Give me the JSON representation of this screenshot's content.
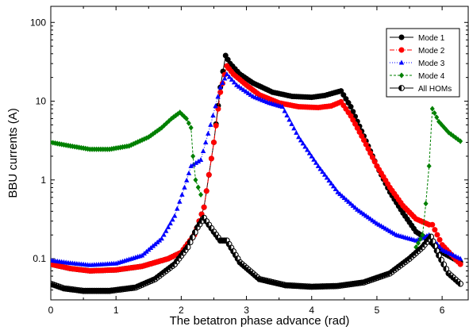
{
  "chart_data": {
    "type": "scatter",
    "title": "",
    "xlabel": "The betatron phase advance (rad)",
    "ylabel": "BBU currents (A)",
    "xlim": [
      0,
      6.4
    ],
    "ylim": [
      0.03,
      160
    ],
    "yscale": "log",
    "x_ticks": [
      0,
      1,
      2,
      3,
      4,
      5,
      6
    ],
    "x_tick_labels": [
      "0",
      "1",
      "2",
      "3",
      "4",
      "5",
      "6"
    ],
    "y_ticks": [
      0.1,
      1,
      10,
      100
    ],
    "y_tick_labels": [
      "0.1",
      "1",
      "10",
      "100"
    ],
    "grid": false,
    "legend_position": "top-right",
    "series": [
      {
        "name": "Mode 1",
        "color": "#000000",
        "marker": "circle",
        "line": "solid",
        "x": [
          0,
          0.3,
          0.6,
          1.0,
          1.4,
          1.8,
          2.0,
          2.2,
          2.35,
          2.5,
          2.6,
          2.68,
          2.75,
          2.9,
          3.1,
          3.4,
          3.7,
          4.0,
          4.2,
          4.35,
          4.45,
          4.6,
          4.8,
          5.0,
          5.2,
          5.4,
          5.6,
          5.8,
          5.83,
          6.0,
          6.28
        ],
        "y": [
          0.085,
          0.075,
          0.07,
          0.072,
          0.08,
          0.1,
          0.12,
          0.2,
          0.45,
          3.0,
          15,
          38,
          30,
          22,
          17,
          13,
          11.5,
          11.2,
          11.8,
          12.8,
          13.5,
          8.5,
          3.6,
          1.5,
          0.7,
          0.38,
          0.22,
          0.17,
          0.16,
          0.12,
          0.09
        ]
      },
      {
        "name": "Mode 2",
        "color": "#ff0000",
        "marker": "circle",
        "line": "dashdot",
        "x": [
          0,
          0.3,
          0.6,
          1.0,
          1.4,
          1.8,
          2.0,
          2.2,
          2.35,
          2.5,
          2.6,
          2.7,
          2.8,
          3.0,
          3.2,
          3.5,
          3.8,
          4.1,
          4.3,
          4.45,
          4.6,
          4.8,
          5.0,
          5.2,
          5.4,
          5.6,
          5.8,
          5.85,
          6.0,
          6.28
        ],
        "y": [
          0.085,
          0.075,
          0.07,
          0.072,
          0.08,
          0.1,
          0.12,
          0.2,
          0.45,
          3.0,
          13,
          28,
          22,
          16,
          12,
          9.5,
          8.5,
          8.3,
          8.7,
          9.8,
          6.5,
          3.2,
          1.5,
          0.8,
          0.47,
          0.32,
          0.27,
          0.27,
          0.15,
          0.085
        ]
      },
      {
        "name": "Mode 3",
        "color": "#0000ff",
        "marker": "triangle",
        "line": "dotted",
        "x": [
          0,
          0.3,
          0.6,
          1.0,
          1.4,
          1.7,
          1.9,
          2.05,
          2.15,
          2.3,
          2.45,
          2.6,
          2.7,
          2.85,
          3.1,
          3.35,
          3.55,
          3.8,
          4.1,
          4.4,
          4.7,
          5.0,
          5.3,
          5.6,
          5.8,
          5.85,
          6.0,
          6.28
        ],
        "y": [
          0.095,
          0.088,
          0.083,
          0.087,
          0.11,
          0.18,
          0.35,
          0.8,
          1.5,
          1.8,
          5,
          15,
          22,
          16,
          11.5,
          9.5,
          8.5,
          3.5,
          1.5,
          0.7,
          0.42,
          0.28,
          0.2,
          0.17,
          0.2,
          0.18,
          0.13,
          0.1
        ]
      },
      {
        "name": "Mode 4",
        "color": "#008000",
        "marker": "diamond",
        "line": "dashed",
        "x": [
          0,
          0.3,
          0.6,
          0.9,
          1.2,
          1.5,
          1.7,
          1.85,
          1.98,
          2.08,
          2.15,
          2.18,
          2.22,
          2.3,
          5.6,
          5.7,
          5.75,
          5.8,
          5.85,
          5.95,
          6.1,
          6.28
        ],
        "y": [
          3.0,
          2.7,
          2.45,
          2.45,
          2.7,
          3.5,
          4.6,
          6.0,
          7.2,
          6.0,
          4.6,
          2.0,
          1.0,
          0.65,
          0.14,
          0.2,
          0.5,
          1.5,
          8.0,
          5.5,
          4.0,
          3.1
        ]
      },
      {
        "name": "All HOMs",
        "color": "#000000",
        "marker": "half-circle",
        "line": "solid",
        "x": [
          0,
          0.2,
          0.5,
          0.9,
          1.3,
          1.6,
          1.9,
          2.1,
          2.25,
          2.35,
          2.5,
          2.6,
          2.7,
          2.9,
          3.2,
          3.6,
          4.0,
          4.4,
          4.8,
          5.2,
          5.5,
          5.7,
          5.83,
          5.95,
          6.1,
          6.28
        ],
        "y": [
          0.048,
          0.042,
          0.039,
          0.039,
          0.043,
          0.055,
          0.085,
          0.14,
          0.25,
          0.33,
          0.22,
          0.17,
          0.17,
          0.09,
          0.055,
          0.046,
          0.044,
          0.045,
          0.05,
          0.065,
          0.1,
          0.14,
          0.19,
          0.11,
          0.065,
          0.048
        ]
      }
    ]
  }
}
